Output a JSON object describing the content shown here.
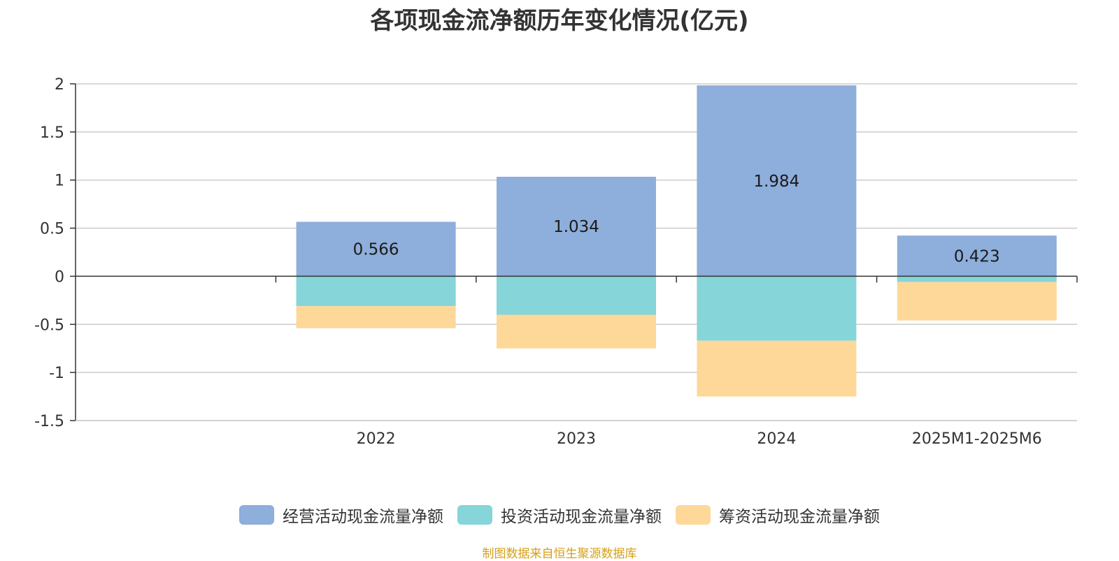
{
  "title": "各项现金流净额历年变化情况(亿元)",
  "source": "制图数据来自恒生聚源数据库",
  "chart_data": {
    "type": "bar",
    "stacked": true,
    "title": "各项现金流净额历年变化情况(亿元)",
    "categories": [
      "",
      "2022",
      "2023",
      "2024",
      "2025M1-2025M6"
    ],
    "series": [
      {
        "name": "经营活动现金流量净额",
        "color": "#8eaedb",
        "values": [
          null,
          0.566,
          1.034,
          1.984,
          0.423
        ],
        "labels": [
          "",
          "0.566",
          "1.034",
          "1.984",
          "0.423"
        ]
      },
      {
        "name": "投资活动现金流量净额",
        "color": "#86d5d8",
        "values": [
          null,
          -0.31,
          -0.4,
          -0.67,
          -0.06
        ]
      },
      {
        "name": "筹资活动现金流量净额",
        "color": "#fdd899",
        "values": [
          null,
          -0.23,
          -0.35,
          -0.58,
          -0.4
        ]
      }
    ],
    "yticks": [
      "2",
      "1.5",
      "1",
      "0.5",
      "0",
      "-0.5",
      "-1",
      "-1.5"
    ],
    "ytick_values": [
      2,
      1.5,
      1,
      0.5,
      0,
      -0.5,
      -1,
      -1.5
    ],
    "ylim": [
      -1.5,
      2
    ],
    "grid": true,
    "legend_position": "bottom"
  }
}
